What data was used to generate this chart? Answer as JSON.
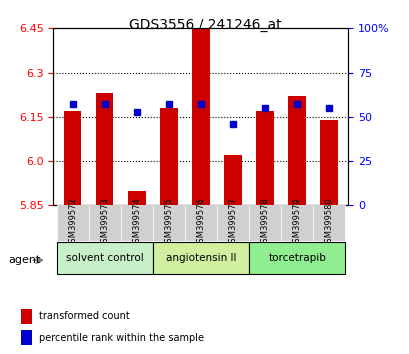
{
  "title": "GDS3556 / 241246_at",
  "samples": [
    "GSM399572",
    "GSM399573",
    "GSM399574",
    "GSM399575",
    "GSM399576",
    "GSM399577",
    "GSM399578",
    "GSM399579",
    "GSM399580"
  ],
  "red_values": [
    6.17,
    6.23,
    5.9,
    6.18,
    6.455,
    6.02,
    6.17,
    6.22,
    6.14
  ],
  "blue_values": [
    57,
    57,
    53,
    57,
    57,
    46,
    55,
    57,
    55
  ],
  "y_min": 5.85,
  "y_max": 6.45,
  "y_ticks_left": [
    5.85,
    6.0,
    6.15,
    6.3,
    6.45
  ],
  "y_ticks_right": [
    0,
    25,
    50,
    75,
    100
  ],
  "groups": [
    {
      "label": "solvent control",
      "start": 0,
      "end": 3,
      "color": "#c8f0c8"
    },
    {
      "label": "angiotensin II",
      "start": 3,
      "end": 6,
      "color": "#d0f0a0"
    },
    {
      "label": "torcetrapib",
      "start": 6,
      "end": 9,
      "color": "#90ee90"
    }
  ],
  "bar_color": "#cc0000",
  "dot_color": "#0000cc",
  "legend_red": "transformed count",
  "legend_blue": "percentile rank within the sample",
  "agent_label": "agent",
  "background_color": "#ffffff",
  "plot_bg": "#ffffff",
  "grid_color": "#000000"
}
